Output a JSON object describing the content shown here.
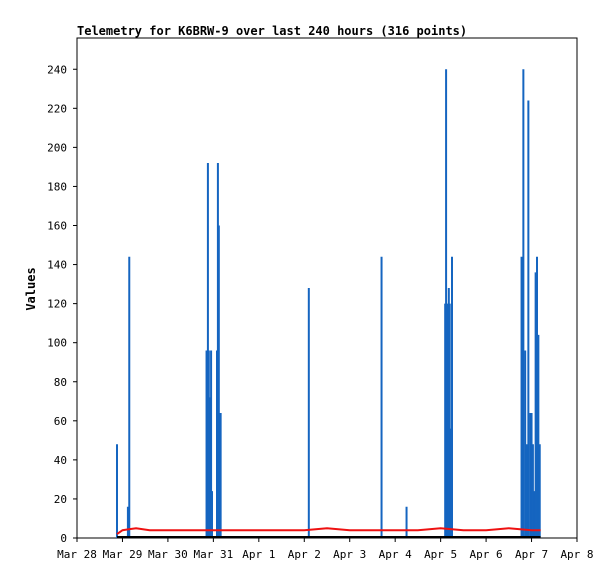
{
  "chart_data": {
    "type": "bar",
    "title": "Telemetry for K6BRW-9 over last 240 hours (316 points)",
    "xlabel": "",
    "ylabel": "Values",
    "x_ticks": [
      "Mar 28",
      "Mar 29",
      "Mar 30",
      "Mar 31",
      "Apr 1",
      "Apr 2",
      "Apr 3",
      "Apr 4",
      "Apr 5",
      "Apr 6",
      "Apr 7",
      "Apr 8"
    ],
    "y_ticks": [
      0,
      20,
      40,
      60,
      80,
      100,
      120,
      140,
      160,
      180,
      200,
      220,
      240
    ],
    "xlim_days": [
      0,
      11
    ],
    "ylim": [
      0,
      256
    ],
    "colors": {
      "bars": "#1565c0",
      "line": "#ee1111",
      "axis": "#000000"
    },
    "series": [
      {
        "type": "bar",
        "x_days": [
          0.88,
          1.12,
          1.15,
          2.85,
          2.88,
          2.9,
          2.93,
          2.95,
          2.97,
          3.08,
          3.1,
          3.12,
          3.14,
          3.16,
          5.1,
          6.7,
          7.25,
          8.1,
          8.12,
          8.14,
          8.16,
          8.18,
          8.2,
          8.22,
          8.25,
          9.78,
          9.82,
          9.86,
          9.9,
          9.93,
          9.97,
          10.0,
          10.03,
          10.06,
          10.09,
          10.12,
          10.15,
          10.18
        ],
        "values": [
          48,
          16,
          144,
          96,
          192,
          96,
          72,
          96,
          24,
          96,
          192,
          160,
          64,
          64,
          128,
          144,
          16,
          120,
          240,
          120,
          64,
          128,
          120,
          56,
          144,
          144,
          240,
          96,
          48,
          224,
          64,
          64,
          48,
          24,
          136,
          144,
          104,
          48
        ]
      },
      {
        "type": "line",
        "x_days": [
          0.88,
          1.0,
          1.3,
          1.6,
          2.0,
          2.4,
          2.8,
          3.0,
          3.5,
          4.0,
          4.5,
          5.0,
          5.5,
          6.0,
          6.5,
          7.0,
          7.5,
          8.0,
          8.5,
          9.0,
          9.5,
          10.0,
          10.2
        ],
        "values": [
          2,
          4,
          5,
          4,
          4,
          4,
          4,
          4,
          4,
          4,
          4,
          4,
          5,
          4,
          4,
          4,
          4,
          5,
          4,
          4,
          5,
          4,
          4
        ]
      },
      {
        "type": "line",
        "x_days": [
          0.88,
          10.2
        ],
        "values": [
          0,
          0
        ]
      }
    ]
  }
}
